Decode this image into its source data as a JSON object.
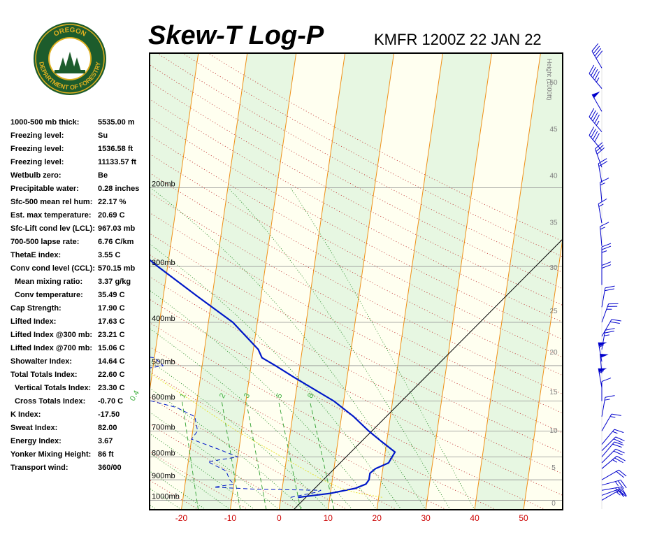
{
  "header": {
    "title": "Skew-T Log-P",
    "station": "KMFR 1200Z 22 JAN 22"
  },
  "logo": {
    "top_text": "OREGON",
    "ring_text": "DEPARTMENT OF FORESTRY",
    "colors": {
      "ring": "#1d5c2c",
      "accent": "#e0b020"
    }
  },
  "params": [
    {
      "label": "1000-500 mb thick:",
      "value": "5535.00 m",
      "indent": false
    },
    {
      "label": "Freezing level:",
      "value": "Su",
      "indent": false
    },
    {
      "label": "Freezing level:",
      "value": "1536.58 ft",
      "indent": false
    },
    {
      "label": "Freezing level:",
      "value": "11133.57 ft",
      "indent": false
    },
    {
      "label": "Wetbulb zero:",
      "value": "Be",
      "indent": false
    },
    {
      "label": "Precipitable water:",
      "value": "0.28 inches",
      "indent": false
    },
    {
      "label": "Sfc-500 mean rel hum:",
      "value": "22.17 %",
      "indent": false
    },
    {
      "label": "Est. max temperature:",
      "value": "20.69 C",
      "indent": false
    },
    {
      "label": "Sfc-Lift cond lev (LCL):",
      "value": "967.03 mb",
      "indent": false
    },
    {
      "label": "700-500 lapse rate:",
      "value": "6.76 C/km",
      "indent": false
    },
    {
      "label": "ThetaE index:",
      "value": "3.55 C",
      "indent": false
    },
    {
      "label": "Conv cond level (CCL):",
      "value": "570.15 mb",
      "indent": false
    },
    {
      "label": "Mean mixing ratio:",
      "value": "3.37 g/kg",
      "indent": true
    },
    {
      "label": "Conv temperature:",
      "value": "35.49 C",
      "indent": true
    },
    {
      "label": "Cap Strength:",
      "value": "17.90 C",
      "indent": false
    },
    {
      "label": "Lifted Index:",
      "value": "17.63 C",
      "indent": false
    },
    {
      "label": "Lifted Index @300 mb:",
      "value": "23.21 C",
      "indent": false
    },
    {
      "label": "Lifted Index @700 mb:",
      "value": "15.06 C",
      "indent": false
    },
    {
      "label": "Showalter Index:",
      "value": "14.64 C",
      "indent": false
    },
    {
      "label": "Total Totals Index:",
      "value": "22.60 C",
      "indent": false
    },
    {
      "label": "Vertical Totals Index:",
      "value": "23.30 C",
      "indent": true
    },
    {
      "label": "Cross Totals Index:",
      "value": "-0.70 C",
      "indent": true
    },
    {
      "label": "K Index:",
      "value": "-17.50",
      "indent": false
    },
    {
      "label": "Sweat Index:",
      "value": "82.00",
      "indent": false
    },
    {
      "label": "Energy Index:",
      "value": "3.67",
      "indent": false
    },
    {
      "label": "Yonker Mixing Height:",
      "value": "86 ft",
      "indent": false
    },
    {
      "label": "Transport wind:",
      "value": "360/00",
      "indent": false
    }
  ],
  "chart_data": {
    "type": "line",
    "title": "Skew-T Log-P",
    "x_ticks": [
      "-20",
      "-10",
      "0",
      "10",
      "20",
      "30",
      "40",
      "50"
    ],
    "x_tick_values": [
      -20,
      -10,
      0,
      10,
      20,
      30,
      40,
      50
    ],
    "xlim": [
      -26.5,
      58
    ],
    "ylim_mb": [
      1050,
      100
    ],
    "skew": "isotherms slope up-right",
    "pressure_labels": [
      {
        "p": 200,
        "label": "200mb"
      },
      {
        "p": 300,
        "label": "300mb"
      },
      {
        "p": 400,
        "label": "400mb"
      },
      {
        "p": 500,
        "label": "500mb"
      },
      {
        "p": 600,
        "label": "600mb"
      },
      {
        "p": 700,
        "label": "700mb"
      },
      {
        "p": 800,
        "label": "800mb"
      },
      {
        "p": 900,
        "label": "900mb"
      },
      {
        "p": 1000,
        "label": "1000mb"
      }
    ],
    "height_axis": {
      "title": "Height (1000ft)",
      "ticks": [
        "0",
        "5",
        "10",
        "15",
        "20",
        "25",
        "30",
        "35",
        "40",
        "45",
        "50"
      ],
      "tick_values_kft": [
        0,
        5,
        10,
        15,
        20,
        25,
        30,
        35,
        40,
        45,
        50
      ]
    },
    "mixing_ratio_labels": [
      "0.4",
      "1",
      "2",
      "3",
      "5",
      "8"
    ],
    "mixing_ratio_values": [
      0.4,
      1,
      2,
      3,
      5,
      8
    ],
    "series": [
      {
        "kind": "temperature",
        "style": "solid",
        "color": "#0018c8",
        "points": [
          [
            985,
            3.5
          ],
          [
            965,
            10
          ],
          [
            950,
            13
          ],
          [
            940,
            15
          ],
          [
            920,
            17
          ],
          [
            900,
            17.5
          ],
          [
            870,
            17.5
          ],
          [
            850,
            18.5
          ],
          [
            825,
            21
          ],
          [
            780,
            22
          ],
          [
            740,
            19
          ],
          [
            700,
            16
          ],
          [
            650,
            12.5
          ],
          [
            600,
            8
          ],
          [
            560,
            3
          ],
          [
            530,
            -1
          ],
          [
            500,
            -5
          ],
          [
            480,
            -8
          ],
          [
            460,
            -9
          ],
          [
            400,
            -15
          ],
          [
            350,
            -23
          ],
          [
            300,
            -32
          ],
          [
            250,
            -42
          ],
          [
            200,
            -53
          ],
          [
            170,
            -59
          ],
          [
            150,
            -60
          ],
          [
            140,
            -58
          ],
          [
            125,
            -56
          ],
          [
            110,
            -52
          ],
          [
            100,
            -49
          ]
        ]
      },
      {
        "kind": "dewpoint",
        "style": "dashed",
        "color": "#0018c8",
        "points": [
          [
            985,
            2
          ],
          [
            975,
            4
          ],
          [
            960,
            7
          ],
          [
            950,
            8
          ],
          [
            945,
            -5
          ],
          [
            935,
            -14
          ],
          [
            920,
            -10
          ],
          [
            900,
            -11
          ],
          [
            860,
            -12
          ],
          [
            820,
            -16
          ],
          [
            800,
            -10
          ],
          [
            770,
            -14
          ],
          [
            730,
            -20
          ],
          [
            700,
            -19
          ],
          [
            650,
            -20
          ],
          [
            620,
            -24
          ],
          [
            590,
            -32
          ],
          [
            550,
            -37
          ],
          [
            520,
            -37
          ],
          [
            500,
            -28
          ],
          [
            480,
            -30
          ],
          [
            460,
            -46
          ],
          [
            440,
            -44
          ],
          [
            400,
            -46
          ],
          [
            360,
            -34
          ],
          [
            320,
            -46
          ],
          [
            290,
            -56
          ],
          [
            260,
            -58
          ],
          [
            220,
            -56
          ],
          [
            200,
            -62
          ],
          [
            180,
            -67
          ],
          [
            150,
            -72
          ],
          [
            120,
            -75
          ],
          [
            100,
            -80
          ]
        ]
      },
      {
        "kind": "parcel",
        "style": "dotted",
        "color": "#e8e030",
        "points": [
          [
            985,
            20.7
          ],
          [
            960,
            15
          ],
          [
            940,
            12
          ],
          [
            900,
            8
          ],
          [
            800,
            -1
          ],
          [
            700,
            -11
          ],
          [
            600,
            -21
          ],
          [
            500,
            -33
          ],
          [
            400,
            -48
          ]
        ]
      }
    ],
    "winds": [
      {
        "p": 1000,
        "dir": 60,
        "spd": 15
      },
      {
        "p": 975,
        "dir": 70,
        "spd": 20
      },
      {
        "p": 950,
        "dir": 80,
        "spd": 25
      },
      {
        "p": 925,
        "dir": 75,
        "spd": 25
      },
      {
        "p": 900,
        "dir": 60,
        "spd": 20
      },
      {
        "p": 850,
        "dir": 50,
        "spd": 25
      },
      {
        "p": 825,
        "dir": 45,
        "spd": 20
      },
      {
        "p": 800,
        "dir": 40,
        "spd": 20
      },
      {
        "p": 775,
        "dir": 45,
        "spd": 20
      },
      {
        "p": 750,
        "dir": 40,
        "spd": 15
      },
      {
        "p": 700,
        "dir": 30,
        "spd": 15
      },
      {
        "p": 650,
        "dir": 10,
        "spd": 15
      },
      {
        "p": 600,
        "dir": 0,
        "spd": 10
      },
      {
        "p": 560,
        "dir": 350,
        "spd": 55
      },
      {
        "p": 520,
        "dir": 355,
        "spd": 50
      },
      {
        "p": 490,
        "dir": 350,
        "spd": 55
      },
      {
        "p": 460,
        "dir": 10,
        "spd": 25
      },
      {
        "p": 430,
        "dir": 30,
        "spd": 20
      },
      {
        "p": 400,
        "dir": 20,
        "spd": 25
      },
      {
        "p": 370,
        "dir": 10,
        "spd": 20
      },
      {
        "p": 330,
        "dir": 0,
        "spd": 20
      },
      {
        "p": 300,
        "dir": 360,
        "spd": 25
      },
      {
        "p": 270,
        "dir": 355,
        "spd": 15
      },
      {
        "p": 240,
        "dir": 350,
        "spd": 15
      },
      {
        "p": 215,
        "dir": 355,
        "spd": 15
      },
      {
        "p": 195,
        "dir": 350,
        "spd": 20
      },
      {
        "p": 180,
        "dir": 340,
        "spd": 30
      },
      {
        "p": 165,
        "dir": 320,
        "spd": 40
      },
      {
        "p": 150,
        "dir": 320,
        "spd": 45
      },
      {
        "p": 135,
        "dir": 330,
        "spd": 50
      },
      {
        "p": 120,
        "dir": 320,
        "spd": 45
      },
      {
        "p": 108,
        "dir": 330,
        "spd": 40
      }
    ]
  }
}
